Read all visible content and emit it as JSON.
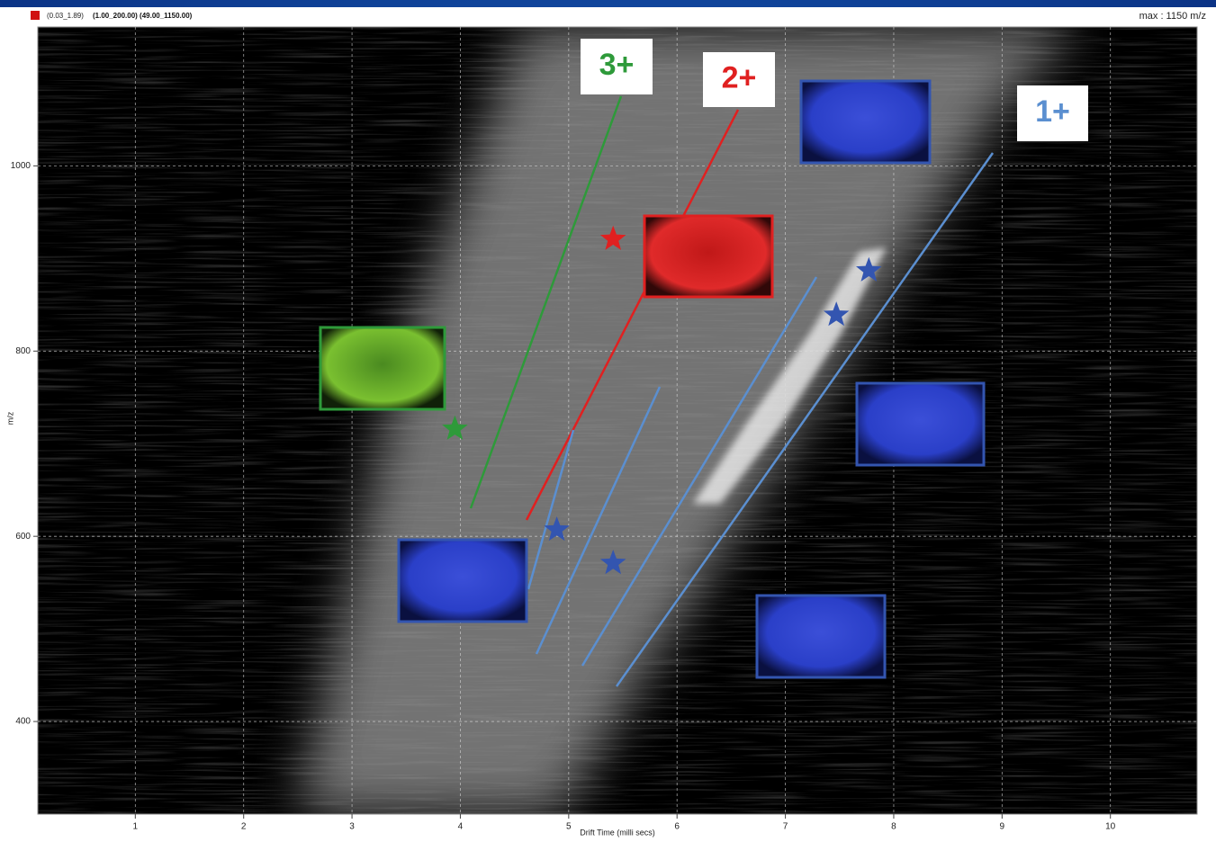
{
  "header": {
    "range_low": "(0.03_1.89)",
    "range_main": "(1.00_200.00) (49.00_1150.00)",
    "max_label": "max : 1150 m/z"
  },
  "chart_data": {
    "type": "scatter",
    "x_label": "Drift Time (milli secs)",
    "y_label": "m/z",
    "xlim": [
      0.1,
      10.8
    ],
    "ylim": [
      300,
      1150
    ],
    "xticks": [
      1,
      2,
      3,
      4,
      5,
      6,
      7,
      8,
      9,
      10
    ],
    "yticks": [
      400,
      600,
      800,
      1000
    ],
    "grid": true,
    "points": [
      {
        "x": 3.95,
        "y": 716,
        "color": "#2e9a3a"
      },
      {
        "x": 5.41,
        "y": 921,
        "color": "#e02020"
      },
      {
        "x": 4.89,
        "y": 607,
        "color": "#3355b0"
      },
      {
        "x": 5.41,
        "y": 571,
        "color": "#3355b0"
      },
      {
        "x": 7.47,
        "y": 839,
        "color": "#3355b0"
      },
      {
        "x": 7.77,
        "y": 887,
        "color": "#3355b0"
      }
    ],
    "annotations": [
      {
        "text": "3+",
        "color": "#2e9a3a"
      },
      {
        "text": "2+",
        "color": "#e02020"
      },
      {
        "text": "1+",
        "color": "#5b8fd0"
      }
    ]
  }
}
